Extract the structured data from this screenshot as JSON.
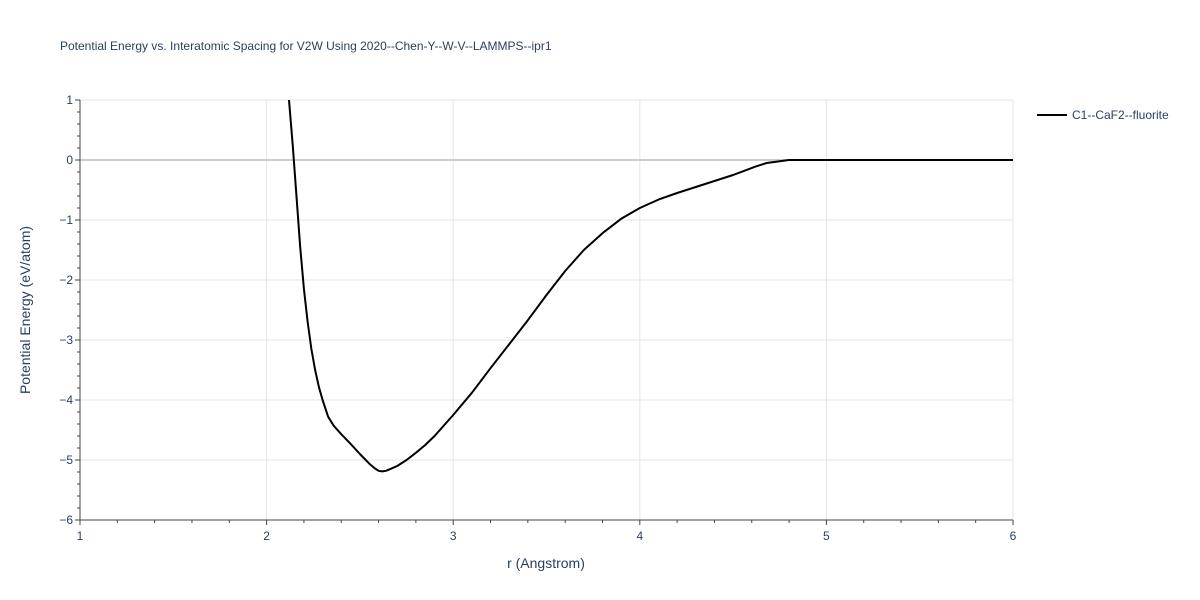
{
  "chart_data": {
    "type": "line",
    "title": "Potential Energy vs. Interatomic Spacing for V2W Using 2020--Chen-Y--W-V--LAMMPS--ipr1",
    "xlabel": "r (Angstrom)",
    "ylabel": "Potential Energy (eV/atom)",
    "xlim": [
      1,
      6
    ],
    "ylim": [
      -6,
      1
    ],
    "x_ticks": [
      1,
      2,
      3,
      4,
      5,
      6
    ],
    "x_tick_labels": [
      "1",
      "2",
      "3",
      "4",
      "5",
      "6"
    ],
    "y_ticks": [
      1,
      0,
      -1,
      -2,
      -3,
      -4,
      -5,
      -6
    ],
    "y_tick_labels": [
      "1",
      "0",
      "−1",
      "−2",
      "−3",
      "−4",
      "−5",
      "−6"
    ],
    "grid": true,
    "legend_position": "top-right",
    "series": [
      {
        "name": "C1--CaF2--fluorite",
        "color": "#000000",
        "x": [
          2.12,
          2.14,
          2.16,
          2.18,
          2.2,
          2.22,
          2.24,
          2.26,
          2.28,
          2.3,
          2.33,
          2.36,
          2.4,
          2.45,
          2.5,
          2.55,
          2.58,
          2.6,
          2.62,
          2.64,
          2.67,
          2.7,
          2.75,
          2.8,
          2.85,
          2.9,
          3.0,
          3.1,
          3.2,
          3.3,
          3.4,
          3.5,
          3.6,
          3.7,
          3.8,
          3.9,
          4.0,
          4.1,
          4.2,
          4.3,
          4.4,
          4.5,
          4.56,
          4.62,
          4.68,
          4.75,
          4.8,
          4.9,
          5.0,
          5.5,
          6.0
        ],
        "y": [
          1.0,
          0.25,
          -0.6,
          -1.45,
          -2.15,
          -2.7,
          -3.15,
          -3.5,
          -3.78,
          -4.0,
          -4.28,
          -4.43,
          -4.57,
          -4.73,
          -4.9,
          -5.06,
          -5.14,
          -5.18,
          -5.19,
          -5.18,
          -5.14,
          -5.1,
          -5.0,
          -4.88,
          -4.75,
          -4.6,
          -4.25,
          -3.88,
          -3.47,
          -3.07,
          -2.67,
          -2.25,
          -1.85,
          -1.5,
          -1.22,
          -0.98,
          -0.8,
          -0.66,
          -0.55,
          -0.45,
          -0.35,
          -0.25,
          -0.18,
          -0.11,
          -0.05,
          -0.02,
          0.0,
          0.0,
          0.0,
          0.0,
          0.0
        ]
      }
    ]
  }
}
